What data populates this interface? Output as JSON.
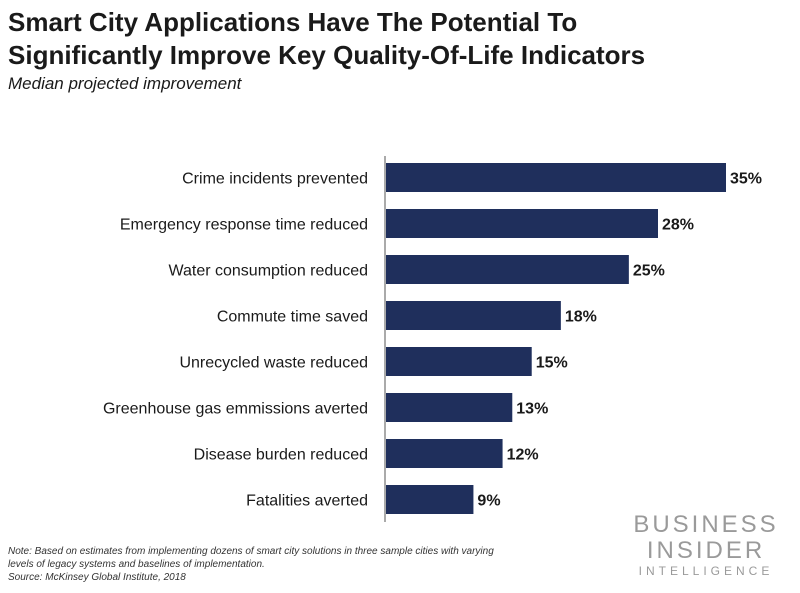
{
  "header": {
    "title_line1": "Smart City Applications Have The Potential To",
    "title_line2": "Significantly Improve Key Quality-Of-Life Indicators",
    "subtitle": "Median projected improvement"
  },
  "chart_data": {
    "type": "bar",
    "orientation": "horizontal",
    "categories": [
      "Crime incidents prevented",
      "Emergency response time reduced",
      "Water consumption reduced",
      "Commute time saved",
      "Unrecycled waste reduced",
      "Greenhouse gas emmissions averted",
      "Disease burden reduced",
      "Fatalities averted"
    ],
    "values": [
      35,
      28,
      25,
      18,
      15,
      13,
      12,
      9
    ],
    "value_labels": [
      "35%",
      "28%",
      "25%",
      "18%",
      "15%",
      "13%",
      "12%",
      "9%"
    ],
    "unit": "%",
    "xlim": [
      0,
      35
    ],
    "grid": false,
    "bar_color": "#1f2f5c"
  },
  "footer": {
    "note_line1": "Note: Based on estimates from implementing dozens of smart city solutions in three sample cities with varying",
    "note_line2": "levels of legacy systems and baselines of implementation.",
    "source": "Source: McKinsey Global Institute, 2018"
  },
  "brand": {
    "line1": "BUSINESS",
    "line2": "INSIDER",
    "line3": "INTELLIGENCE"
  }
}
